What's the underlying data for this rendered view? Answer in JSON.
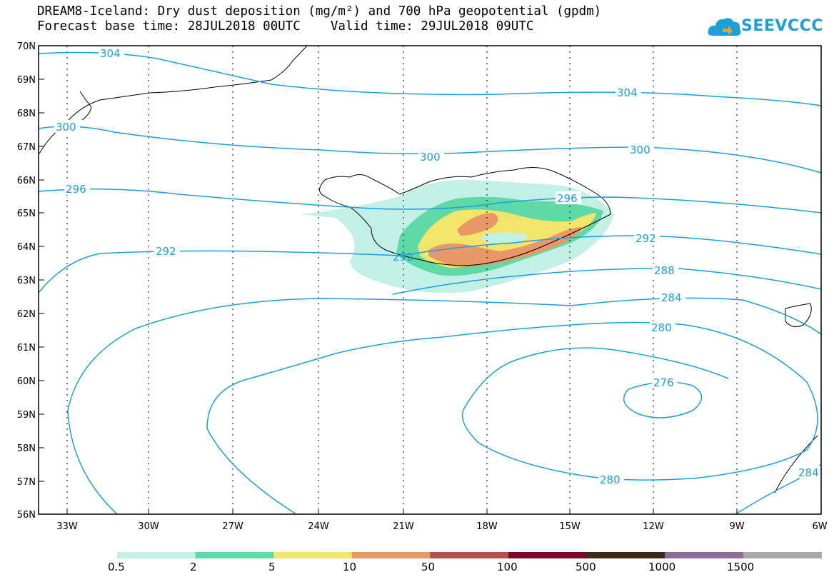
{
  "header": {
    "title_line1": "DREAM8-Iceland: Dry dust deposition (mg/m²) and 700 hPa geopotential (gpdm)",
    "title_line2": "Forecast base time: 28JUL2018 00UTC    Valid time: 29JUL2018 09UTC"
  },
  "logo": {
    "text": "SEEVCCC",
    "icon": "cloud-logo-icon",
    "color": "#1a9fd8"
  },
  "map": {
    "lat_labels": [
      "70N",
      "69N",
      "68N",
      "67N",
      "66N",
      "65N",
      "64N",
      "63N",
      "62N",
      "61N",
      "60N",
      "59N",
      "58N",
      "57N",
      "56N"
    ],
    "lon_labels": [
      "33W",
      "30W",
      "27W",
      "24W",
      "21W",
      "18W",
      "15W",
      "12W",
      "9W",
      "6W"
    ],
    "contour_color": "#1a9fe0",
    "contour_labels": [
      "304",
      "304",
      "300",
      "300",
      "300",
      "296",
      "296",
      "292",
      "292",
      "292",
      "288",
      "284",
      "280",
      "280",
      "276",
      "284"
    ]
  },
  "colorbar": {
    "colors": [
      "#c2f0e6",
      "#5fd9a5",
      "#f3e46a",
      "#e89866",
      "#b3504a",
      "#7d0826",
      "#3a2a16",
      "#8f6a9a",
      "#a8a8a8"
    ],
    "labels": [
      "0.5",
      "2",
      "5",
      "10",
      "50",
      "100",
      "500",
      "1000",
      "1500"
    ]
  }
}
